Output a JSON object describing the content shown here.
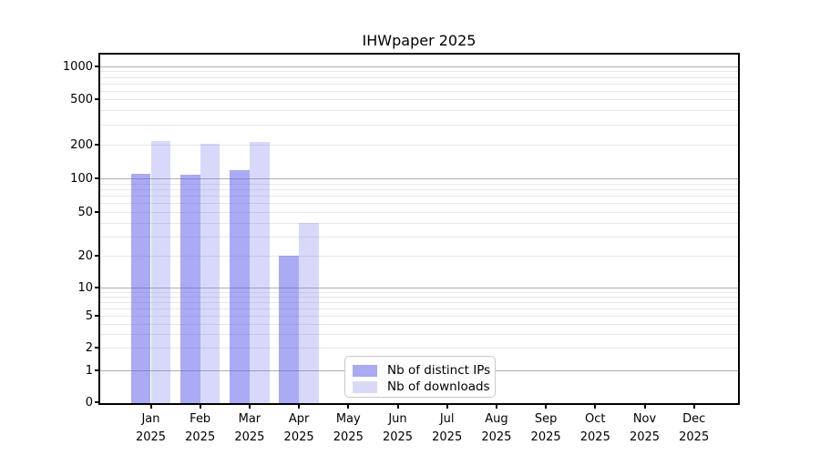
{
  "title": "IHWpaper 2025",
  "chart_data": {
    "type": "bar",
    "title": "IHWpaper 2025",
    "categories": [
      "Jan",
      "Feb",
      "Mar",
      "Apr",
      "May",
      "Jun",
      "Jul",
      "Aug",
      "Sep",
      "Oct",
      "Nov",
      "Dec"
    ],
    "year": "2025",
    "series": [
      {
        "name": "Nb of distinct IPs",
        "values": [
          110,
          108,
          118,
          20,
          null,
          null,
          null,
          null,
          null,
          null,
          null,
          null
        ],
        "color": "#aaaaf0",
        "fill": "rgba(85,85,235,0.5)"
      },
      {
        "name": "Nb of downloads",
        "values": [
          215,
          205,
          210,
          40,
          null,
          null,
          null,
          null,
          null,
          null,
          null,
          null
        ],
        "color": "#d9d9f7",
        "fill": "rgba(110,110,235,0.27)"
      }
    ],
    "y_ticks": [
      0,
      1,
      2,
      5,
      10,
      20,
      50,
      100,
      200,
      500,
      1000
    ],
    "yscale": "symlog",
    "ylim": [
      0,
      1260
    ],
    "grid": true,
    "legend_position": "inside lower-center-left",
    "colors": {
      "major_grid": "#b0b0b0",
      "minor_grid": "#e7e7e7",
      "axis": "#000000",
      "background": "#ffffff"
    }
  }
}
